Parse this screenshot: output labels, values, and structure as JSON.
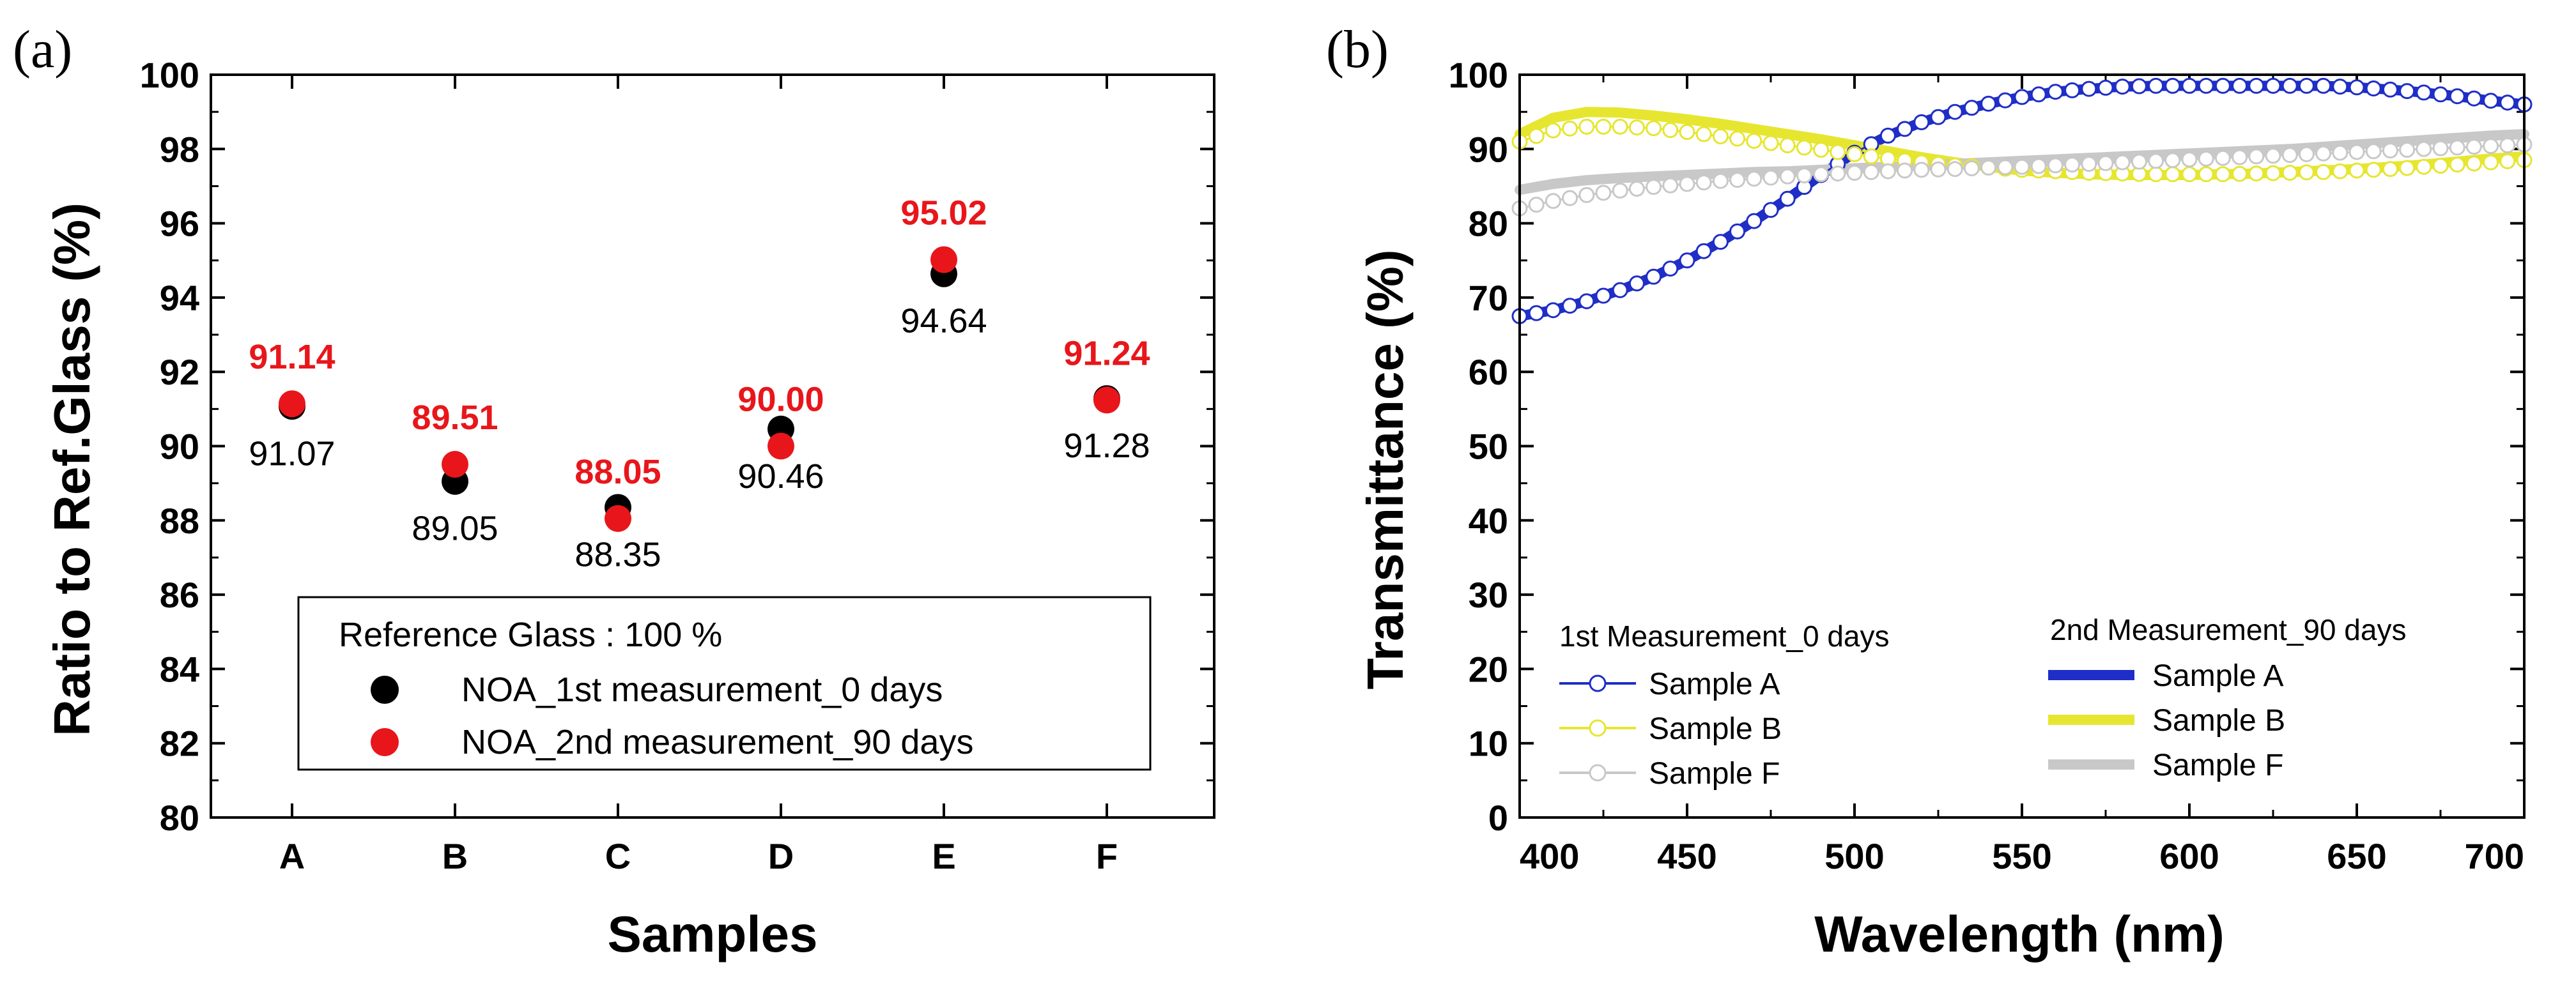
{
  "chart_data": [
    {
      "panel_label": "(a)",
      "type": "scatter",
      "title": "",
      "xlabel": "Samples",
      "ylabel": "Ratio to Ref.Glass (%)",
      "categories": [
        "A",
        "B",
        "C",
        "D",
        "E",
        "F"
      ],
      "ylim": [
        80,
        100
      ],
      "yticks": [
        "80",
        "82",
        "84",
        "86",
        "88",
        "90",
        "92",
        "94",
        "96",
        "98",
        "100"
      ],
      "series": [
        {
          "name": "NOA_1st measurement_0 days",
          "color": "#000000",
          "values": [
            91.07,
            89.05,
            88.35,
            90.46,
            94.64,
            91.28
          ],
          "labels": [
            "91.07",
            "89.05",
            "88.35",
            "90.46",
            "94.64",
            "91.28"
          ]
        },
        {
          "name": "NOA_2nd measurement_90 days",
          "color": "#e8161b",
          "values": [
            91.14,
            89.51,
            88.05,
            90.0,
            95.02,
            91.24
          ],
          "labels": [
            "91.14",
            "89.51",
            "88.05",
            "90.00",
            "95.02",
            "91.24"
          ]
        }
      ],
      "legend": {
        "placement": "bottom-right",
        "header": "Reference Glass : 100 %",
        "entries": [
          "NOA_1st measurement_0 days",
          "NOA_2nd measurement_90 days"
        ]
      },
      "grid": false
    },
    {
      "panel_label": "(b)",
      "type": "line",
      "title": "",
      "xlabel": "Wavelength (nm)",
      "ylabel": "Transmittance (%)",
      "xlim": [
        400,
        700
      ],
      "ylim": [
        0,
        100
      ],
      "xticks": [
        "400",
        "450",
        "500",
        "550",
        "600",
        "650",
        "700"
      ],
      "yticks": [
        "0",
        "10",
        "20",
        "30",
        "40",
        "50",
        "60",
        "70",
        "80",
        "90",
        "100"
      ],
      "x": [
        400,
        410,
        420,
        430,
        440,
        450,
        460,
        470,
        480,
        490,
        500,
        510,
        520,
        530,
        540,
        550,
        560,
        570,
        580,
        590,
        600,
        610,
        620,
        630,
        640,
        650,
        660,
        670,
        680,
        690,
        700
      ],
      "series": [
        {
          "name": "Sample A",
          "group": "1st Measurement_0 days",
          "style": "open-circle-line",
          "color": "#1f2ec7",
          "values": [
            67.5,
            68.3,
            69.5,
            71.0,
            72.8,
            75.0,
            77.5,
            80.3,
            83.3,
            86.5,
            89.5,
            91.8,
            93.6,
            95.0,
            96.1,
            97.0,
            97.7,
            98.1,
            98.4,
            98.5,
            98.5,
            98.5,
            98.5,
            98.5,
            98.5,
            98.3,
            98.0,
            97.6,
            97.1,
            96.5,
            96.0
          ]
        },
        {
          "name": "Sample B",
          "group": "1st Measurement_0 days",
          "style": "open-circle-line",
          "color": "#e6e630",
          "values": [
            91.0,
            92.5,
            93.0,
            93.0,
            92.8,
            92.3,
            91.7,
            91.1,
            90.5,
            89.9,
            89.3,
            88.7,
            88.2,
            87.8,
            87.5,
            87.2,
            87.0,
            86.8,
            86.7,
            86.6,
            86.6,
            86.6,
            86.7,
            86.8,
            86.9,
            87.1,
            87.3,
            87.6,
            87.9,
            88.2,
            88.5
          ]
        },
        {
          "name": "Sample F",
          "group": "1st Measurement_0 days",
          "style": "open-circle-line",
          "color": "#c8c8c8",
          "values": [
            82.0,
            83.0,
            83.8,
            84.4,
            84.9,
            85.3,
            85.7,
            86.0,
            86.3,
            86.6,
            86.8,
            87.0,
            87.2,
            87.3,
            87.5,
            87.6,
            87.8,
            88.0,
            88.2,
            88.4,
            88.6,
            88.8,
            89.0,
            89.2,
            89.4,
            89.6,
            89.8,
            90.0,
            90.2,
            90.4,
            90.6
          ]
        },
        {
          "name": "Sample A",
          "group": "2nd Measurement_90 days",
          "style": "thick-line",
          "color": "#1f2ec7",
          "values": [
            67.5,
            68.3,
            69.5,
            71.0,
            72.8,
            75.0,
            77.5,
            80.3,
            83.3,
            86.5,
            89.5,
            91.8,
            93.6,
            95.0,
            96.1,
            97.0,
            97.7,
            98.1,
            98.4,
            98.5,
            98.5,
            98.5,
            98.5,
            98.5,
            98.5,
            98.3,
            98.0,
            97.6,
            97.1,
            96.5,
            96.0
          ]
        },
        {
          "name": "Sample B",
          "group": "2nd Measurement_90 days",
          "style": "thick-line",
          "color": "#e6e630",
          "values": [
            92.0,
            94.2,
            95.0,
            94.9,
            94.5,
            94.0,
            93.4,
            92.7,
            92.0,
            91.3,
            90.5,
            89.7,
            88.9,
            88.2,
            87.6,
            87.1,
            86.8,
            86.6,
            86.5,
            86.5,
            86.5,
            86.6,
            86.7,
            86.9,
            87.1,
            87.3,
            87.6,
            87.9,
            88.3,
            88.7,
            89.0
          ]
        },
        {
          "name": "Sample F",
          "group": "2nd Measurement_90 days",
          "style": "thick-line",
          "color": "#c8c8c8",
          "values": [
            84.5,
            85.3,
            85.8,
            86.1,
            86.3,
            86.5,
            86.7,
            86.9,
            87.0,
            87.2,
            87.4,
            87.6,
            87.8,
            88.0,
            88.2,
            88.4,
            88.6,
            88.8,
            89.0,
            89.2,
            89.4,
            89.6,
            89.8,
            90.0,
            90.3,
            90.6,
            90.9,
            91.2,
            91.5,
            91.8,
            92.0
          ]
        }
      ],
      "legend": {
        "placement": "bottom-left",
        "groups": [
          {
            "title": "1st Measurement_0 days",
            "entries": [
              "Sample A",
              "Sample B",
              "Sample F"
            ]
          },
          {
            "title": "2nd Measurement_90 days",
            "entries": [
              "Sample A",
              "Sample B",
              "Sample F"
            ]
          }
        ]
      },
      "grid": false
    }
  ]
}
